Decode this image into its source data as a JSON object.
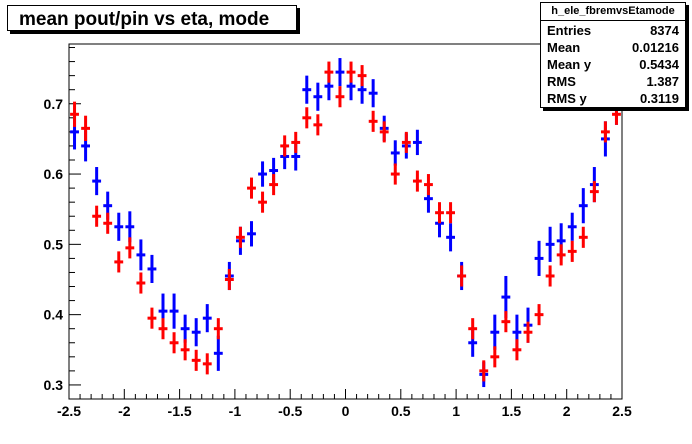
{
  "title": "mean pout/pin vs eta, mode",
  "stats_box": {
    "name": "h_ele_fbremvsEtamode",
    "rows": [
      {
        "key": "Entries",
        "value": "8374"
      },
      {
        "key": "Mean",
        "value": "0.01216"
      },
      {
        "key": "Mean y",
        "value": "0.5434"
      },
      {
        "key": "RMS",
        "value": "1.387"
      },
      {
        "key": "RMS y",
        "value": "0.3119"
      }
    ]
  },
  "chart_data": {
    "type": "scatter",
    "title": "mean pout/pin vs eta, mode",
    "xlabel": "",
    "ylabel": "",
    "xlim": [
      -2.5,
      2.5
    ],
    "ylim": [
      0.28,
      0.785
    ],
    "xticks": [
      "-2.5",
      "-2",
      "-1.5",
      "-1",
      "-0.5",
      "0",
      "0.5",
      "1",
      "1.5",
      "2",
      "2.5"
    ],
    "yticks": [
      "0.3",
      "0.4",
      "0.5",
      "0.6",
      "0.7"
    ],
    "grid": false,
    "bin_width": 0.1,
    "series": [
      {
        "color": "#0000ff",
        "x": [
          -2.45,
          -2.35,
          -2.25,
          -2.15,
          -2.05,
          -1.95,
          -1.85,
          -1.75,
          -1.65,
          -1.55,
          -1.45,
          -1.35,
          -1.25,
          -1.15,
          -1.05,
          -0.95,
          -0.85,
          -0.75,
          -0.65,
          -0.55,
          -0.45,
          -0.35,
          -0.25,
          -0.15,
          -0.05,
          0.05,
          0.15,
          0.25,
          0.35,
          0.45,
          0.55,
          0.65,
          0.75,
          0.85,
          0.95,
          1.05,
          1.15,
          1.25,
          1.35,
          1.45,
          1.55,
          1.65,
          1.75,
          1.85,
          1.95,
          2.05,
          2.15,
          2.25,
          2.35,
          2.45
        ],
        "y": [
          0.66,
          0.64,
          0.59,
          0.555,
          0.525,
          0.525,
          0.485,
          0.465,
          0.405,
          0.405,
          0.38,
          0.375,
          0.395,
          0.345,
          0.455,
          0.505,
          0.515,
          0.6,
          0.605,
          0.625,
          0.625,
          0.72,
          0.71,
          0.725,
          0.745,
          0.725,
          0.72,
          0.715,
          0.665,
          0.63,
          0.64,
          0.645,
          0.565,
          0.53,
          0.51,
          0.455,
          0.36,
          0.315,
          0.375,
          0.425,
          0.375,
          0.385,
          0.48,
          0.5,
          0.505,
          0.525,
          0.555,
          0.585,
          0.65,
          0.695
        ],
        "err": [
          0.025,
          0.022,
          0.02,
          0.02,
          0.02,
          0.022,
          0.022,
          0.02,
          0.025,
          0.025,
          0.02,
          0.02,
          0.02,
          0.025,
          0.02,
          0.02,
          0.018,
          0.018,
          0.018,
          0.018,
          0.02,
          0.02,
          0.02,
          0.02,
          0.02,
          0.02,
          0.02,
          0.02,
          0.018,
          0.018,
          0.018,
          0.018,
          0.02,
          0.02,
          0.02,
          0.02,
          0.02,
          0.018,
          0.025,
          0.03,
          0.025,
          0.025,
          0.025,
          0.025,
          0.025,
          0.02,
          0.025,
          0.025,
          0.025,
          0.025
        ]
      },
      {
        "color": "#ff0000",
        "x": [
          -2.45,
          -2.35,
          -2.25,
          -2.15,
          -2.05,
          -1.95,
          -1.85,
          -1.75,
          -1.65,
          -1.55,
          -1.45,
          -1.35,
          -1.25,
          -1.15,
          -1.05,
          -0.95,
          -0.85,
          -0.75,
          -0.65,
          -0.55,
          -0.45,
          -0.35,
          -0.25,
          -0.15,
          -0.05,
          0.05,
          0.15,
          0.25,
          0.35,
          0.45,
          0.55,
          0.65,
          0.75,
          0.85,
          0.95,
          1.05,
          1.15,
          1.25,
          1.35,
          1.45,
          1.55,
          1.65,
          1.75,
          1.85,
          1.95,
          2.05,
          2.15,
          2.25,
          2.35,
          2.45
        ],
        "y": [
          0.685,
          0.665,
          0.54,
          0.53,
          0.475,
          0.495,
          0.445,
          0.395,
          0.38,
          0.36,
          0.35,
          0.335,
          0.33,
          0.38,
          0.45,
          0.51,
          0.58,
          0.56,
          0.585,
          0.64,
          0.645,
          0.68,
          0.67,
          0.745,
          0.71,
          0.745,
          0.74,
          0.675,
          0.66,
          0.6,
          0.645,
          0.59,
          0.585,
          0.545,
          0.545,
          0.455,
          0.38,
          0.32,
          0.34,
          0.39,
          0.35,
          0.375,
          0.4,
          0.455,
          0.485,
          0.49,
          0.51,
          0.575,
          0.66,
          0.685
        ],
        "err": [
          0.018,
          0.018,
          0.015,
          0.015,
          0.015,
          0.015,
          0.015,
          0.015,
          0.015,
          0.015,
          0.015,
          0.015,
          0.015,
          0.015,
          0.015,
          0.015,
          0.015,
          0.015,
          0.015,
          0.015,
          0.015,
          0.015,
          0.015,
          0.015,
          0.015,
          0.015,
          0.015,
          0.015,
          0.015,
          0.015,
          0.015,
          0.015,
          0.015,
          0.015,
          0.015,
          0.015,
          0.015,
          0.015,
          0.015,
          0.015,
          0.015,
          0.015,
          0.015,
          0.015,
          0.015,
          0.015,
          0.015,
          0.015,
          0.015,
          0.015
        ]
      }
    ]
  }
}
